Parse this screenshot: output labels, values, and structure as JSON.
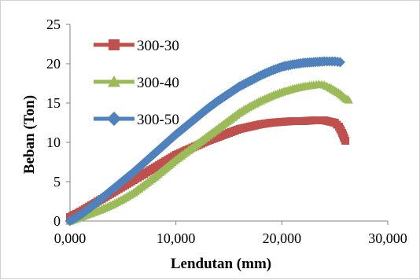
{
  "chart_data": {
    "type": "line",
    "xlabel": "Lendutan (mm)",
    "ylabel": "Beban (Ton)",
    "xlim": [
      0,
      30
    ],
    "ylim": [
      0,
      25
    ],
    "x_ticks": [
      0,
      10,
      20,
      30
    ],
    "x_tick_labels": [
      "0,000",
      "10,000",
      "20,000",
      "30,000"
    ],
    "y_ticks": [
      0,
      5,
      10,
      15,
      20,
      25
    ],
    "y_tick_labels": [
      "0",
      "5",
      "10",
      "15",
      "20",
      "25"
    ],
    "grid": "none",
    "legend_position": "top-left, inside plot",
    "series": [
      {
        "name": "300-30",
        "color": "#c0504d",
        "marker": "square",
        "points": [
          [
            0,
            0.5
          ],
          [
            1,
            1.2
          ],
          [
            2,
            2.0
          ],
          [
            3,
            2.8
          ],
          [
            4,
            3.6
          ],
          [
            5,
            4.4
          ],
          [
            6,
            5.2
          ],
          [
            7,
            6.0
          ],
          [
            8,
            6.8
          ],
          [
            9,
            7.6
          ],
          [
            10,
            8.4
          ],
          [
            11,
            9.0
          ],
          [
            12,
            9.6
          ],
          [
            13,
            10.2
          ],
          [
            14,
            10.7
          ],
          [
            15,
            11.2
          ],
          [
            16,
            11.7
          ],
          [
            17,
            12.0
          ],
          [
            18,
            12.3
          ],
          [
            19,
            12.5
          ],
          [
            20,
            12.6
          ],
          [
            21,
            12.7
          ],
          [
            22,
            12.7
          ],
          [
            23,
            12.8
          ],
          [
            24,
            12.8
          ],
          [
            25,
            12.5
          ],
          [
            25.4,
            12.0
          ],
          [
            25.7,
            11.2
          ],
          [
            25.9,
            10.5
          ],
          [
            26,
            10.2
          ]
        ]
      },
      {
        "name": "300-40",
        "color": "#9bbb59",
        "marker": "triangle",
        "points": [
          [
            0,
            0
          ],
          [
            1,
            0.5
          ],
          [
            2,
            1.0
          ],
          [
            3,
            1.5
          ],
          [
            4,
            2.1
          ],
          [
            5,
            2.8
          ],
          [
            6,
            3.6
          ],
          [
            7,
            4.6
          ],
          [
            8,
            5.6
          ],
          [
            9,
            6.7
          ],
          [
            10,
            7.8
          ],
          [
            11,
            8.8
          ],
          [
            12,
            9.8
          ],
          [
            13,
            10.8
          ],
          [
            14,
            11.8
          ],
          [
            15,
            12.8
          ],
          [
            16,
            13.8
          ],
          [
            17,
            14.6
          ],
          [
            18,
            15.3
          ],
          [
            19,
            15.9
          ],
          [
            20,
            16.4
          ],
          [
            21,
            16.8
          ],
          [
            22,
            17.1
          ],
          [
            23,
            17.3
          ],
          [
            23.5,
            17.4
          ],
          [
            24,
            17.3
          ],
          [
            24.5,
            17.0
          ],
          [
            25,
            16.6
          ],
          [
            25.5,
            16.2
          ],
          [
            26,
            15.6
          ],
          [
            26.3,
            15.4
          ]
        ]
      },
      {
        "name": "300-50",
        "color": "#4f81bd",
        "marker": "diamond",
        "points": [
          [
            0,
            0
          ],
          [
            1,
            0.8
          ],
          [
            2,
            1.8
          ],
          [
            3,
            2.9
          ],
          [
            4,
            4.0
          ],
          [
            5,
            5.1
          ],
          [
            6,
            6.2
          ],
          [
            7,
            7.4
          ],
          [
            8,
            8.6
          ],
          [
            9,
            9.8
          ],
          [
            10,
            11.0
          ],
          [
            11,
            12.1
          ],
          [
            12,
            13.2
          ],
          [
            13,
            14.3
          ],
          [
            14,
            15.3
          ],
          [
            15,
            16.2
          ],
          [
            16,
            17.1
          ],
          [
            17,
            17.8
          ],
          [
            18,
            18.5
          ],
          [
            19,
            19.1
          ],
          [
            20,
            19.6
          ],
          [
            21,
            19.9
          ],
          [
            22,
            20.1
          ],
          [
            23,
            20.2
          ],
          [
            24,
            20.3
          ],
          [
            24.5,
            20.3
          ],
          [
            25,
            20.3
          ],
          [
            25.5,
            20.2
          ]
        ]
      }
    ]
  }
}
